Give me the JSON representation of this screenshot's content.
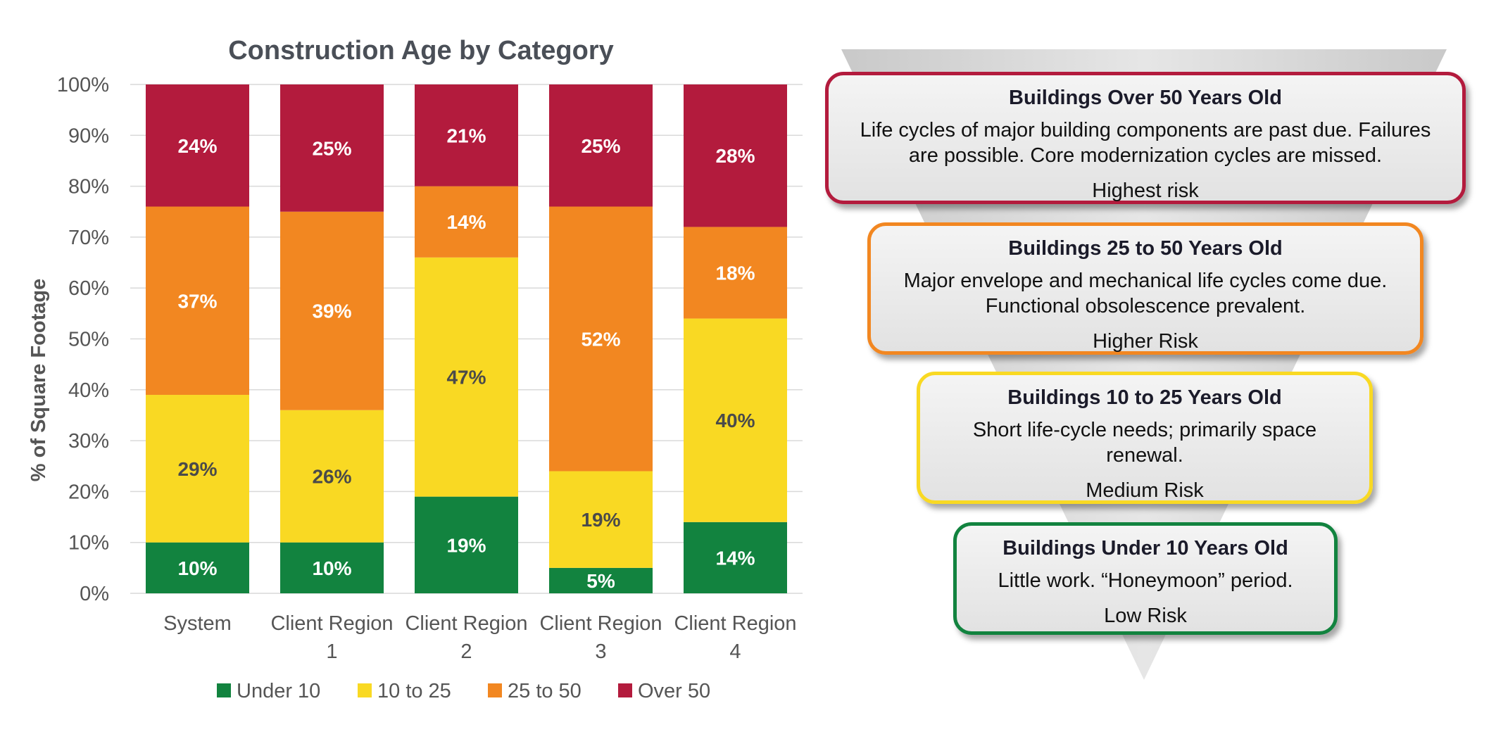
{
  "chart_data": {
    "type": "bar",
    "stacked": true,
    "title": "Construction Age by Category",
    "xlabel": "",
    "ylabel": "% of Square Footage",
    "ylim": [
      0,
      100
    ],
    "yticks": [
      "0%",
      "10%",
      "20%",
      "30%",
      "40%",
      "50%",
      "60%",
      "70%",
      "80%",
      "90%",
      "100%"
    ],
    "categories": [
      [
        "System"
      ],
      [
        "Client Region",
        "1"
      ],
      [
        "Client Region",
        "2"
      ],
      [
        "Client Region",
        "3"
      ],
      [
        "Client Region",
        "4"
      ]
    ],
    "series": [
      {
        "name": "Under 10",
        "color": "#12833f",
        "label_color": "#ffffff",
        "values": [
          10,
          10,
          19,
          5,
          14
        ]
      },
      {
        "name": "10 to 25",
        "color": "#f9d923",
        "label_color": "#4a4a4a",
        "values": [
          29,
          26,
          47,
          19,
          40
        ]
      },
      {
        "name": "25 to 50",
        "color": "#f28721",
        "label_color": "#ffffff",
        "values": [
          37,
          39,
          14,
          52,
          18
        ]
      },
      {
        "name": "Over 50",
        "color": "#b31b3d",
        "label_color": "#ffffff",
        "values": [
          24,
          25,
          21,
          25,
          28
        ]
      }
    ],
    "legend_position": "bottom"
  },
  "risk_cards": [
    {
      "title": "Buildings Over 50 Years Old",
      "desc_lines": [
        "Life cycles of major building components are past due.  Failures",
        "are possible. Core modernization cycles are missed."
      ],
      "risk": "Highest risk",
      "border_color": "#b31b3d"
    },
    {
      "title": "Buildings 25 to 50 Years Old",
      "desc_lines": [
        "Major envelope and mechanical life cycles come due.",
        "Functional obsolescence prevalent."
      ],
      "risk": "Higher Risk",
      "border_color": "#f28721"
    },
    {
      "title": "Buildings 10 to 25 Years Old",
      "desc_lines": [
        "Short life-cycle needs; primarily space",
        "renewal."
      ],
      "risk": "Medium Risk",
      "border_color": "#f9d923"
    },
    {
      "title": "Buildings Under 10 Years Old",
      "desc_lines": [
        "Little work. “Honeymoon” period."
      ],
      "risk": "Low Risk",
      "border_color": "#12833f"
    }
  ]
}
